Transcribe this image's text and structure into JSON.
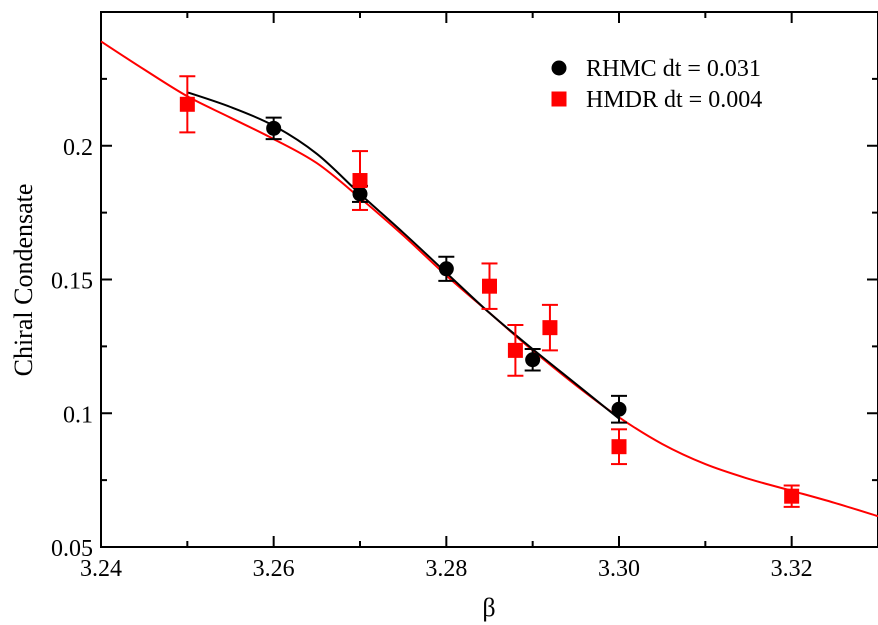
{
  "chart_data": {
    "type": "scatter",
    "xlabel": "β",
    "ylabel": "Chiral Condensate",
    "xlim": [
      3.24,
      3.33
    ],
    "ylim": [
      0.05,
      0.25
    ],
    "x_ticks": [
      3.24,
      3.26,
      3.28,
      3.3,
      3.32
    ],
    "x_tick_labels": [
      "3.24",
      "3.26",
      "3.28",
      "3.30",
      "3.32"
    ],
    "y_ticks": [
      0.05,
      0.1,
      0.15,
      0.2
    ],
    "y_tick_labels": [
      "0.05",
      "0.1",
      "0.15",
      "0.2"
    ],
    "grid": false,
    "legend_position": "top-right",
    "series": [
      {
        "name": "RHMC dt = 0.031",
        "marker": "circle",
        "color": "#000000",
        "points": [
          {
            "x": 3.26,
            "y": 0.2065,
            "err": 0.004
          },
          {
            "x": 3.27,
            "y": 0.182,
            "err": 0.003
          },
          {
            "x": 3.28,
            "y": 0.154,
            "err": 0.0045
          },
          {
            "x": 3.29,
            "y": 0.12,
            "err": 0.004
          },
          {
            "x": 3.3,
            "y": 0.1015,
            "err": 0.005
          }
        ],
        "fit_curve": {
          "x": [
            3.25,
            3.255,
            3.26,
            3.265,
            3.27,
            3.275,
            3.28,
            3.285,
            3.29,
            3.295,
            3.3
          ],
          "y": [
            0.22,
            0.2145,
            0.2075,
            0.197,
            0.182,
            0.1675,
            0.1525,
            0.1375,
            0.124,
            0.111,
            0.098
          ]
        }
      },
      {
        "name": "HMDR dt = 0.004",
        "marker": "square",
        "color": "#ff0000",
        "points": [
          {
            "x": 3.25,
            "y": 0.2155,
            "err": 0.0105
          },
          {
            "x": 3.27,
            "y": 0.187,
            "err": 0.011
          },
          {
            "x": 3.285,
            "y": 0.1475,
            "err": 0.0085
          },
          {
            "x": 3.288,
            "y": 0.1235,
            "err": 0.0095
          },
          {
            "x": 3.292,
            "y": 0.132,
            "err": 0.0085
          },
          {
            "x": 3.3,
            "y": 0.0875,
            "err": 0.0065
          },
          {
            "x": 3.32,
            "y": 0.069,
            "err": 0.004
          }
        ],
        "fit_curve": {
          "x": [
            3.24,
            3.245,
            3.25,
            3.255,
            3.26,
            3.265,
            3.27,
            3.275,
            3.28,
            3.285,
            3.29,
            3.295,
            3.3,
            3.305,
            3.31,
            3.315,
            3.32,
            3.325,
            3.33
          ],
          "y": [
            0.239,
            0.2285,
            0.2185,
            0.2105,
            0.2025,
            0.1935,
            0.1805,
            0.1665,
            0.1515,
            0.1375,
            0.1235,
            0.1105,
            0.0985,
            0.0885,
            0.081,
            0.0755,
            0.071,
            0.0665,
            0.0615
          ]
        }
      }
    ]
  }
}
